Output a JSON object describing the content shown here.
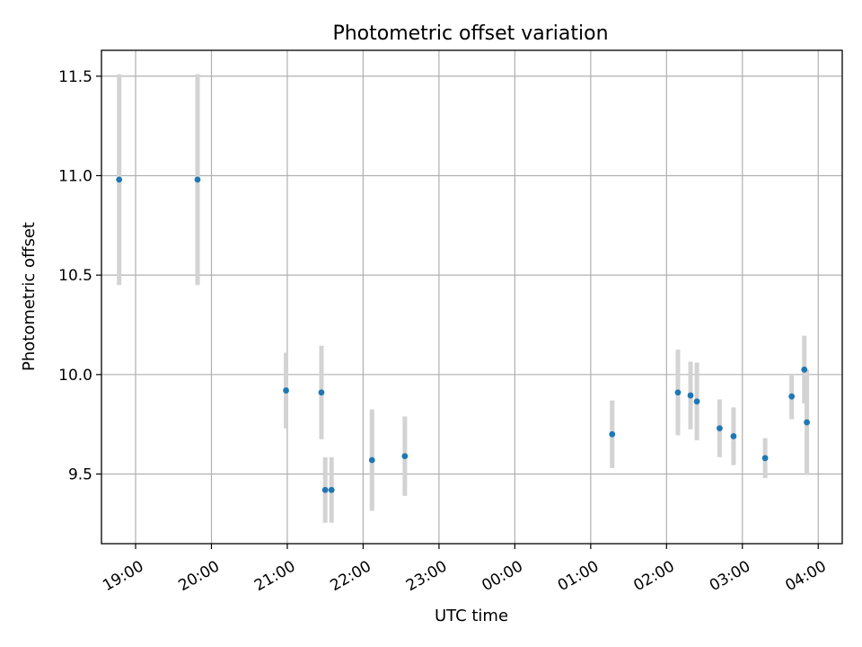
{
  "chart_data": {
    "type": "scatter",
    "title": "Photometric offset variation",
    "xlabel": "UTC time",
    "ylabel": "Photometric offset",
    "xlim": [
      "18:33",
      "04:19"
    ],
    "ylim": [
      9.15,
      11.63
    ],
    "yticks": [
      9.5,
      10.0,
      10.5,
      11.0,
      11.5
    ],
    "yticklabels": [
      "9.5",
      "10.0",
      "10.5",
      "11.0",
      "11.5"
    ],
    "xticks": [
      "19:00",
      "20:00",
      "21:00",
      "22:00",
      "23:00",
      "00:00",
      "01:00",
      "02:00",
      "03:00",
      "04:00"
    ],
    "grid": true,
    "marker_color": "#1f77b4",
    "errorbar_color": "#d3d3d3",
    "points": [
      {
        "x": "18:47",
        "y": 10.98,
        "err": 0.53
      },
      {
        "x": "19:49",
        "y": 10.98,
        "err": 0.53
      },
      {
        "x": "20:59",
        "y": 9.92,
        "err": 0.19
      },
      {
        "x": "21:27",
        "y": 9.91,
        "err": 0.235
      },
      {
        "x": "21:30",
        "y": 9.42,
        "err": 0.165
      },
      {
        "x": "21:35",
        "y": 9.42,
        "err": 0.165
      },
      {
        "x": "22:07",
        "y": 9.57,
        "err": 0.255
      },
      {
        "x": "22:33",
        "y": 9.59,
        "err": 0.2
      },
      {
        "x": "01:17",
        "y": 9.7,
        "err": 0.17
      },
      {
        "x": "02:09",
        "y": 9.91,
        "err": 0.215
      },
      {
        "x": "02:19",
        "y": 9.895,
        "err": 0.17
      },
      {
        "x": "02:24",
        "y": 9.865,
        "err": 0.195
      },
      {
        "x": "02:42",
        "y": 9.73,
        "err": 0.145
      },
      {
        "x": "02:53",
        "y": 9.69,
        "err": 0.145
      },
      {
        "x": "03:18",
        "y": 9.58,
        "err": 0.1
      },
      {
        "x": "03:39",
        "y": 9.89,
        "err": 0.115
      },
      {
        "x": "03:49",
        "y": 10.025,
        "err": 0.17
      },
      {
        "x": "03:51",
        "y": 9.76,
        "err": 0.265
      }
    ]
  }
}
